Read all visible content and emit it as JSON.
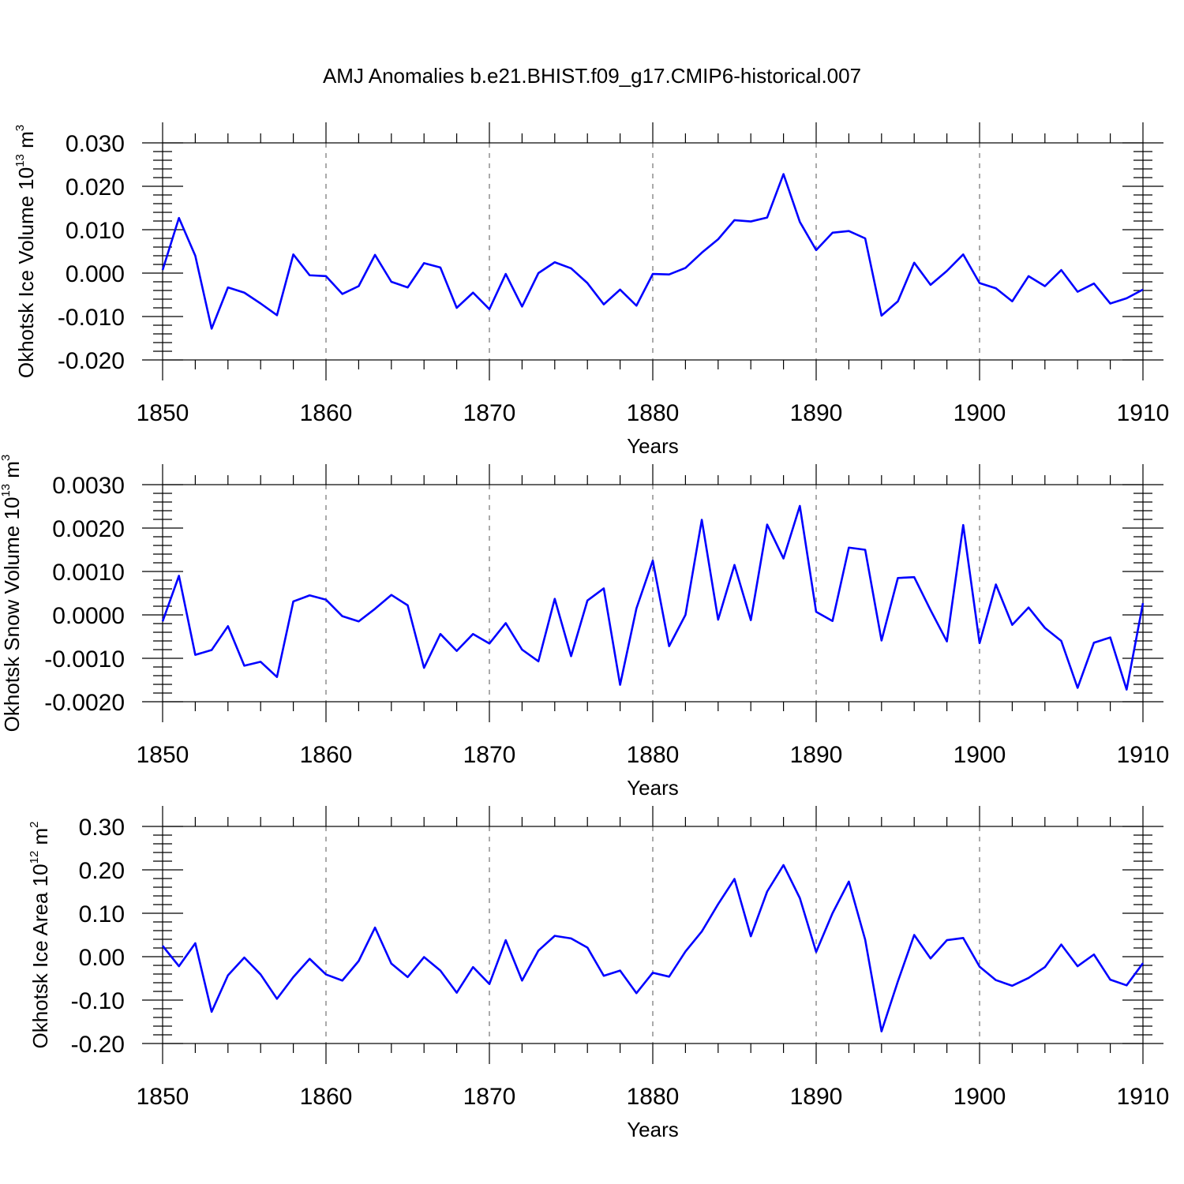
{
  "title": "AMJ Anomalies b.e21.BHIST.f09_g17.CMIP6-historical.007",
  "chart_data": [
    {
      "type": "line",
      "name": "ice-volume",
      "title": "AMJ Anomalies b.e21.BHIST.f09_g17.CMIP6-historical.007",
      "xlabel": "Years",
      "ylabel_main": "Okhotsk Ice Volume 10",
      "ylabel_exp": "13",
      "ylabel_unit": " m",
      "ylabel_unit_exp": "3",
      "xlim": [
        1850,
        1910
      ],
      "ylim": [
        -0.02,
        0.03
      ],
      "xticks": [
        "1850",
        "1860",
        "1870",
        "1880",
        "1890",
        "1900",
        "1910"
      ],
      "yticks": [
        {
          "v": -0.02,
          "label": "-0.020"
        },
        {
          "v": -0.01,
          "label": "-0.010"
        },
        {
          "v": 0.0,
          "label": "0.000"
        },
        {
          "v": 0.01,
          "label": "0.010"
        },
        {
          "v": 0.02,
          "label": "0.020"
        },
        {
          "v": 0.03,
          "label": "0.030"
        }
      ],
      "x_start": 1850,
      "values": [
        0.0007,
        0.0127,
        0.004,
        -0.0128,
        -0.0033,
        -0.0045,
        -0.007,
        -0.0097,
        0.0043,
        -0.0005,
        -0.0007,
        -0.0048,
        -0.003,
        0.0042,
        -0.002,
        -0.0033,
        0.0023,
        0.0013,
        -0.008,
        -0.0045,
        -0.0083,
        -0.0002,
        -0.0077,
        0.0,
        0.0025,
        0.0011,
        -0.0023,
        -0.0072,
        -0.0038,
        -0.0075,
        -0.0002,
        -0.0003,
        0.0012,
        0.0047,
        0.0078,
        0.0122,
        0.0119,
        0.0128,
        0.0228,
        0.0118,
        0.0053,
        0.0093,
        0.0097,
        0.008,
        -0.0098,
        -0.0065,
        0.0024,
        -0.0027,
        0.0005,
        0.0043,
        -0.0023,
        -0.0035,
        -0.0065,
        -0.0007,
        -0.003,
        0.0007,
        -0.0043,
        -0.0024,
        -0.007,
        -0.0058,
        -0.0038
      ]
    },
    {
      "type": "line",
      "name": "snow-volume",
      "xlabel": "Years",
      "ylabel_main": "Okhotsk Snow Volume 10",
      "ylabel_exp": "13",
      "ylabel_unit": " m",
      "ylabel_unit_exp": "3",
      "xlim": [
        1850,
        1910
      ],
      "ylim": [
        -0.002,
        0.003
      ],
      "xticks": [
        "1850",
        "1860",
        "1870",
        "1880",
        "1890",
        "1900",
        "1910"
      ],
      "yticks": [
        {
          "v": -0.002,
          "label": "-0.0020"
        },
        {
          "v": -0.001,
          "label": "-0.0010"
        },
        {
          "v": 0.0,
          "label": "0.0000"
        },
        {
          "v": 0.001,
          "label": "0.0010"
        },
        {
          "v": 0.002,
          "label": "0.0020"
        },
        {
          "v": 0.003,
          "label": "0.0030"
        }
      ],
      "x_start": 1850,
      "values": [
        -0.00015,
        0.0009,
        -0.00092,
        -0.00081,
        -0.00026,
        -0.00117,
        -0.00108,
        -0.00143,
        0.00031,
        0.00045,
        0.00035,
        -3e-05,
        -0.00015,
        0.00014,
        0.00046,
        0.00022,
        -0.00122,
        -0.00044,
        -0.00083,
        -0.00044,
        -0.00066,
        -0.00019,
        -0.0008,
        -0.00107,
        0.00037,
        -0.00095,
        0.00033,
        0.00061,
        -0.00161,
        0.00015,
        0.00125,
        -0.00072,
        0.0,
        0.00219,
        -0.00011,
        0.00115,
        -0.00012,
        0.00208,
        0.0013,
        0.00251,
        7e-05,
        -0.00014,
        0.00155,
        0.0015,
        -0.00059,
        0.00085,
        0.00087,
        0.00011,
        -0.00061,
        0.00207,
        -0.00065,
        0.0007,
        -0.00023,
        0.00017,
        -0.0003,
        -0.0006,
        -0.00168,
        -0.00064,
        -0.00052,
        -0.00172,
        0.00027
      ]
    },
    {
      "type": "line",
      "name": "ice-area",
      "xlabel": "Years",
      "ylabel_main": "Okhotsk Ice Area 10",
      "ylabel_exp": "12",
      "ylabel_unit": " m",
      "ylabel_unit_exp": "2",
      "xlim": [
        1850,
        1910
      ],
      "ylim": [
        -0.2,
        0.3
      ],
      "xticks": [
        "1850",
        "1860",
        "1870",
        "1880",
        "1890",
        "1900",
        "1910"
      ],
      "yticks": [
        {
          "v": -0.2,
          "label": "-0.20"
        },
        {
          "v": -0.1,
          "label": "-0.10"
        },
        {
          "v": 0.0,
          "label": "0.00"
        },
        {
          "v": 0.1,
          "label": "0.10"
        },
        {
          "v": 0.2,
          "label": "0.20"
        },
        {
          "v": 0.3,
          "label": "0.30"
        }
      ],
      "x_start": 1850,
      "values": [
        0.025,
        -0.022,
        0.031,
        -0.127,
        -0.043,
        -0.002,
        -0.041,
        -0.097,
        -0.047,
        -0.005,
        -0.041,
        -0.055,
        -0.01,
        0.067,
        -0.016,
        -0.047,
        -0.001,
        -0.032,
        -0.083,
        -0.024,
        -0.063,
        0.038,
        -0.055,
        0.014,
        0.048,
        0.042,
        0.021,
        -0.044,
        -0.032,
        -0.084,
        -0.037,
        -0.046,
        0.012,
        0.058,
        0.121,
        0.179,
        0.047,
        0.15,
        0.211,
        0.135,
        0.011,
        0.1,
        0.173,
        0.039,
        -0.172,
        -0.057,
        0.05,
        -0.004,
        0.038,
        0.043,
        -0.023,
        -0.054,
        -0.067,
        -0.049,
        -0.024,
        0.028,
        -0.022,
        0.005,
        -0.053,
        -0.066,
        -0.015
      ]
    }
  ]
}
